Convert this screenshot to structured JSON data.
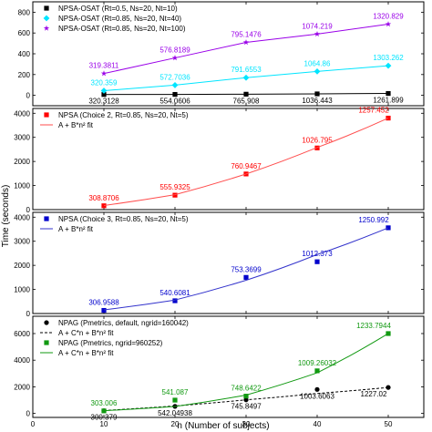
{
  "chart_data": [
    {
      "type": "line",
      "x": [
        10,
        20,
        30,
        40,
        50
      ],
      "xlim": [
        0,
        55
      ],
      "ylim": [
        -100,
        900
      ],
      "yticks": [
        0,
        200,
        400,
        600,
        800
      ],
      "legend_position": "top-left",
      "series": [
        {
          "name": "NPSA-OSAT (Rt=0.5, Ns=20, Nt=10)",
          "marker": "square",
          "color": "#000000",
          "values": [
            8,
            9,
            11,
            14,
            18
          ],
          "labels": [
            "320.3128",
            "554.0606",
            "765.908",
            "1036.443",
            "1261.899"
          ]
        },
        {
          "name": "NPSA-OSAT (Rt=0.85, Ns=20, Nt=40)",
          "marker": "diamond",
          "color": "#00e5ff",
          "values": [
            45,
            98,
            170,
            230,
            285
          ],
          "labels": [
            "320.359",
            "572.7036",
            "791.6553",
            "1064.86",
            "1303.262"
          ]
        },
        {
          "name": "NPSA-OSAT (Rt=0.85, Ns=20, Nt=100)",
          "marker": "star",
          "color": "#9a00e8",
          "values": [
            210,
            360,
            510,
            590,
            685
          ],
          "labels": [
            "319.3811",
            "576.8189",
            "795.1476",
            "1074.219",
            "1320.829"
          ]
        }
      ]
    },
    {
      "type": "line",
      "x": [
        10,
        20,
        30,
        40,
        50
      ],
      "xlim": [
        0,
        55
      ],
      "ylim": [
        0,
        4200
      ],
      "yticks": [
        0,
        1000,
        2000,
        3000,
        4000
      ],
      "legend_position": "top-left",
      "series": [
        {
          "name": "NPSA (Choice 2, Rt=0.85, Ns=20, Nt=5)",
          "marker": "square",
          "color": "#ff0000",
          "values": [
            160,
            600,
            1480,
            2560,
            3800
          ],
          "labels": [
            "308.8706",
            "555.9325",
            "760.9467",
            "1026.795",
            "1257.452"
          ]
        },
        {
          "name": "A + B*n² fit",
          "role": "fit",
          "color": "#ff4d4d",
          "values": [
            170,
            620,
            1480,
            2580,
            3800
          ]
        }
      ]
    },
    {
      "type": "line",
      "x": [
        10,
        20,
        30,
        40,
        50
      ],
      "xlim": [
        0,
        55
      ],
      "ylim": [
        0,
        4200
      ],
      "yticks": [
        0,
        1000,
        2000,
        3000,
        4000
      ],
      "legend_position": "top-left",
      "series": [
        {
          "name": "NPSA (Choice 3, Rt=0.85, Ns=20, Nt=5)",
          "marker": "square",
          "color": "#0000cc",
          "values": [
            130,
            530,
            1500,
            2150,
            3560
          ],
          "labels": [
            "306.9588",
            "540.6081",
            "753.3699",
            "1012.373",
            "1250.992"
          ]
        },
        {
          "name": "A + B*n² fit",
          "role": "fit",
          "color": "#3333cc",
          "values": [
            150,
            560,
            1380,
            2450,
            3560
          ]
        }
      ]
    },
    {
      "type": "line",
      "x": [
        10,
        20,
        30,
        40,
        50
      ],
      "xlim": [
        0,
        55
      ],
      "ylim": [
        -300,
        7300
      ],
      "yticks": [
        0,
        2000,
        4000,
        6000
      ],
      "xticks": [
        0,
        10,
        20,
        30,
        40,
        50
      ],
      "xlabel": "n (Number of subjects)",
      "legend_position": "top-left",
      "series": [
        {
          "name": "NPAG (Pmetrics, default, ngrid=160042)",
          "marker": "circle",
          "color": "#000000",
          "values": [
            200,
            530,
            1020,
            1800,
            1950
          ],
          "labels": [
            "300.379",
            "542.04938",
            "745.8497",
            "1003.6063",
            "1227.02"
          ]
        },
        {
          "name": "A + C*n + B*n² fit",
          "role": "fit",
          "style": "dashed",
          "color": "#000000",
          "values": [
            220,
            560,
            1020,
            1500,
            1950
          ]
        },
        {
          "name": "NPAG (Pmetrics, ngrid=960252)",
          "marker": "square",
          "color": "#119911",
          "values": [
            190,
            1000,
            1300,
            3200,
            6000
          ],
          "labels": [
            "303.006",
            "541.087",
            "748.6422",
            "1009.26032",
            "1233.7944"
          ]
        },
        {
          "name": "A + C*n + B*n² fit",
          "role": "fit",
          "color": "#119911",
          "values": [
            200,
            520,
            1380,
            3050,
            6000
          ]
        }
      ]
    }
  ],
  "shared_ylabel": "Time (seconds)"
}
